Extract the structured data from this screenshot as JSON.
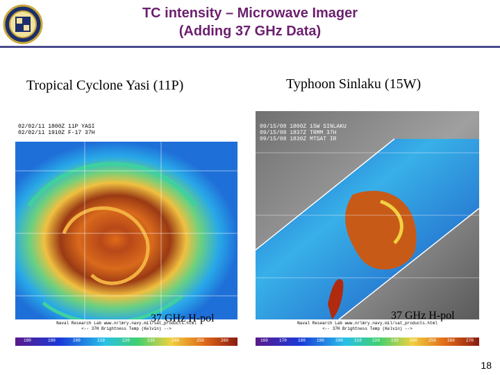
{
  "title_line1": "TC intensity – Microwave Imager",
  "title_line2": "(Adding 37 GHz Data)",
  "left": {
    "caption": "Tropical Cyclone Yasi (11P)",
    "header_lines": [
      "02/02/11 1800Z 11P YASI",
      "02/02/11 1910Z F-17 37H"
    ],
    "overlay": "37 GHz H-pol",
    "footer": [
      "Naval Research Lab www.nrlmry.navy.mil/sat_products.html",
      "<-- 37H Brightness Temp (Kelvin) -->"
    ],
    "scale": [
      "180",
      "190",
      "200",
      "210",
      "220",
      "230",
      "240",
      "250",
      "260"
    ]
  },
  "right": {
    "caption": "Typhoon Sinlaku (15W)",
    "header_lines": [
      "09/15/08 1800Z 15W SINLAKU",
      "09/15/08 1837Z TRMM 37H",
      "09/15/08 1830Z MTSAT IR"
    ],
    "overlay": "37 GHz H-pol",
    "footer": [
      "Naval Research Lab www.nrlmry.navy.mil/sat_products.html",
      "<-- 37H Brightness Temp (Kelvin) -->"
    ],
    "scale": [
      "160",
      "170",
      "180",
      "190",
      "200",
      "210",
      "220",
      "230",
      "240",
      "250",
      "260",
      "270"
    ]
  },
  "page_number": "18"
}
